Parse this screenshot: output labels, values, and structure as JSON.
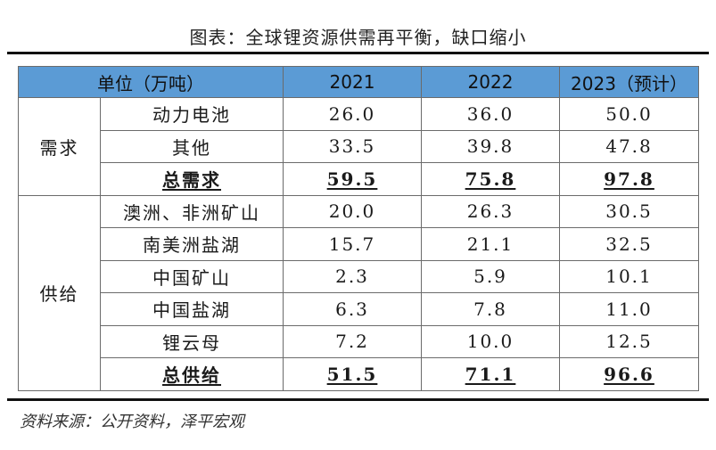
{
  "title": "图表：全球锂资源供需再平衡，缺口缩小",
  "header": {
    "unit": "单位（万吨）",
    "years": [
      "2021",
      "2022",
      "2023（预计）"
    ]
  },
  "demand": {
    "group": "需求",
    "rows": [
      {
        "item": "动力电池",
        "v2021": "26.0",
        "v2022": "36.0",
        "v2023": "50.0"
      },
      {
        "item": "其他",
        "v2021": "33.5",
        "v2022": "39.8",
        "v2023": "47.8"
      },
      {
        "item": "总需求",
        "v2021": "59.5",
        "v2022": "75.8",
        "v2023": "97.8"
      }
    ]
  },
  "supply": {
    "group": "供给",
    "rows": [
      {
        "item": "澳洲、非洲矿山",
        "v2021": "20.0",
        "v2022": "26.3",
        "v2023": "30.5"
      },
      {
        "item": "南美洲盐湖",
        "v2021": "15.7",
        "v2022": "21.1",
        "v2023": "32.5"
      },
      {
        "item": "中国矿山",
        "v2021": "2.3",
        "v2022": "5.9",
        "v2023": "10.1"
      },
      {
        "item": "中国盐湖",
        "v2021": "6.3",
        "v2022": "7.8",
        "v2023": "11.0"
      },
      {
        "item": "锂云母",
        "v2021": "7.2",
        "v2022": "10.0",
        "v2023": "12.5"
      },
      {
        "item": "总供给",
        "v2021": "51.5",
        "v2022": "71.1",
        "v2023": "96.6"
      }
    ]
  },
  "source": "资料来源：公开资料，泽平宏观"
}
